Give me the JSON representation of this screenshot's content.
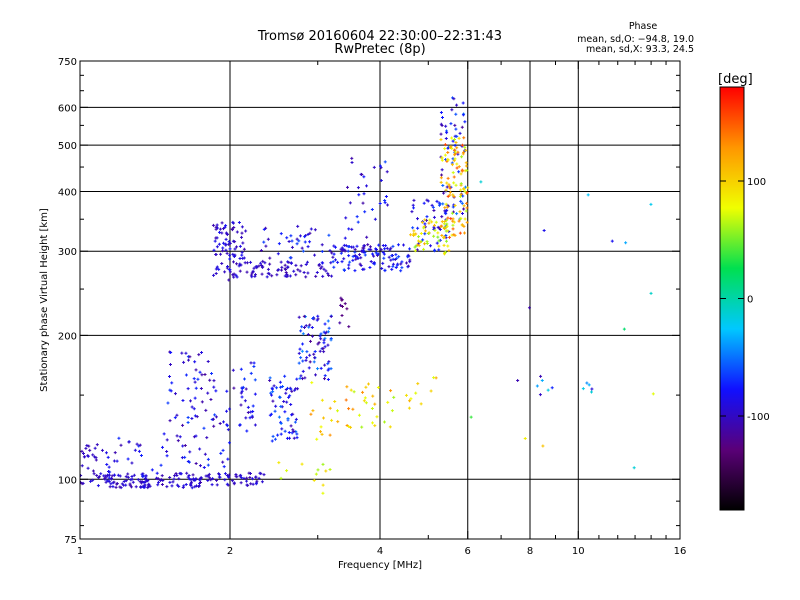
{
  "chart_data": {
    "type": "scatter",
    "title": "Tromsø 20160604 22:30:00–22:31:43",
    "subtitle": "RwPretec (8p)",
    "xlabel": "Frequency [MHz]",
    "ylabel": "Stationary phase Virtual Height [km]",
    "x_scale": "log",
    "y_scale": "log",
    "xlim": [
      1,
      16
    ],
    "ylim": [
      75,
      750
    ],
    "x_ticks": [
      1,
      2,
      4,
      6,
      8,
      10,
      16
    ],
    "y_ticks": [
      75,
      100,
      200,
      300,
      400,
      500,
      600,
      750
    ],
    "x_gridlines": [
      2,
      4,
      6,
      8,
      10
    ],
    "y_gridlines": [
      100,
      200,
      300,
      400,
      500,
      600
    ],
    "grid": true,
    "stats": {
      "heading": "Phase",
      "line1": "mean, sd,O: −94.8, 19.0",
      "line2": "mean, sd,X:  93.3, 24.5"
    },
    "colorbar": {
      "label": "[deg]",
      "range": [
        -180,
        180
      ],
      "ticks": [
        100,
        0,
        -100
      ],
      "colormap": [
        "#000000",
        "#5a0078",
        "#1010ff",
        "#00c8ff",
        "#00e050",
        "#f0ff00",
        "#ff9600",
        "#ff0000"
      ]
    },
    "series": [
      {
        "clusters": [
          {
            "x": [
              1.0,
              1.08
            ],
            "y": [
              97,
              118
            ],
            "n": 25,
            "phase": [
              -110,
              -90
            ]
          },
          {
            "x": [
              1.08,
              1.75
            ],
            "y": [
              96,
              103
            ],
            "n": 130,
            "phase": [
              -110,
              -85
            ]
          },
          {
            "x": [
              1.75,
              2.35
            ],
            "y": [
              97,
              103
            ],
            "n": 55,
            "phase": [
              -110,
              -85
            ]
          },
          {
            "x": [
              1.08,
              1.5
            ],
            "y": [
              100,
              125
            ],
            "n": 35,
            "phase": [
              -110,
              -70
            ]
          },
          {
            "x": [
              1.5,
              2.05
            ],
            "y": [
              105,
              185
            ],
            "n": 95,
            "phase": [
              -115,
              -60
            ]
          },
          {
            "x": [
              2.05,
              2.25
            ],
            "y": [
              125,
              180
            ],
            "n": 30,
            "phase": [
              -110,
              -60
            ]
          },
          {
            "x": [
              2.4,
              2.75
            ],
            "y": [
              120,
              165
            ],
            "n": 65,
            "phase": [
              -110,
              -50
            ]
          },
          {
            "x": [
              2.75,
              3.2
            ],
            "y": [
              160,
              220
            ],
            "n": 80,
            "phase": [
              -120,
              -40
            ]
          },
          {
            "x": [
              3.3,
              3.5
            ],
            "y": [
              205,
              240
            ],
            "n": 10,
            "phase": [
              -130,
              -110
            ]
          },
          {
            "x": [
              1.85,
              2.15
            ],
            "y": [
              260,
              345
            ],
            "n": 90,
            "phase": [
              -110,
              -80
            ]
          },
          {
            "x": [
              2.15,
              3.2
            ],
            "y": [
              265,
              285
            ],
            "n": 70,
            "phase": [
              -110,
              -90
            ]
          },
          {
            "x": [
              2.3,
              3.2
            ],
            "y": [
              280,
              340
            ],
            "n": 45,
            "phase": [
              -110,
              -60
            ]
          },
          {
            "x": [
              3.2,
              4.6
            ],
            "y": [
              272,
              310
            ],
            "n": 120,
            "phase": [
              -110,
              -60
            ]
          },
          {
            "x": [
              3.4,
              4.2
            ],
            "y": [
              300,
              480
            ],
            "n": 35,
            "phase": [
              -115,
              -60
            ]
          },
          {
            "x": [
              4.6,
              5.5
            ],
            "y": [
              300,
              390
            ],
            "n": 50,
            "phase": [
              -110,
              -60
            ]
          },
          {
            "x": [
              5.3,
              5.95
            ],
            "y": [
              350,
              640
            ],
            "n": 65,
            "phase": [
              -120,
              -40
            ]
          }
        ]
      },
      {
        "clusters": [
          {
            "x": [
              2.3,
              3.3
            ],
            "y": [
              90,
              110
            ],
            "n": 12,
            "phase": [
              60,
              120
            ]
          },
          {
            "x": [
              2.9,
              3.3
            ],
            "y": [
              120,
              160
            ],
            "n": 15,
            "phase": [
              70,
              130
            ]
          },
          {
            "x": [
              3.4,
              4.3
            ],
            "y": [
              125,
              160
            ],
            "n": 30,
            "phase": [
              60,
              140
            ]
          },
          {
            "x": [
              4.5,
              5.2
            ],
            "y": [
              140,
              165
            ],
            "n": 10,
            "phase": [
              70,
              120
            ]
          },
          {
            "x": [
              4.6,
              5.5
            ],
            "y": [
              295,
              350
            ],
            "n": 55,
            "phase": [
              50,
              120
            ]
          },
          {
            "x": [
              5.3,
              6.0
            ],
            "y": [
              320,
              520
            ],
            "n": 110,
            "phase": [
              60,
              160
            ]
          },
          {
            "x": [
              7.5,
              12.5
            ],
            "y": [
              150,
              165
            ],
            "n": 12,
            "phase": [
              -110,
              20
            ]
          },
          {
            "x": [
              6.0,
              14.5
            ],
            "y": [
              100,
              470
            ],
            "n": 14,
            "phase": [
              -110,
              110
            ]
          }
        ]
      }
    ]
  }
}
